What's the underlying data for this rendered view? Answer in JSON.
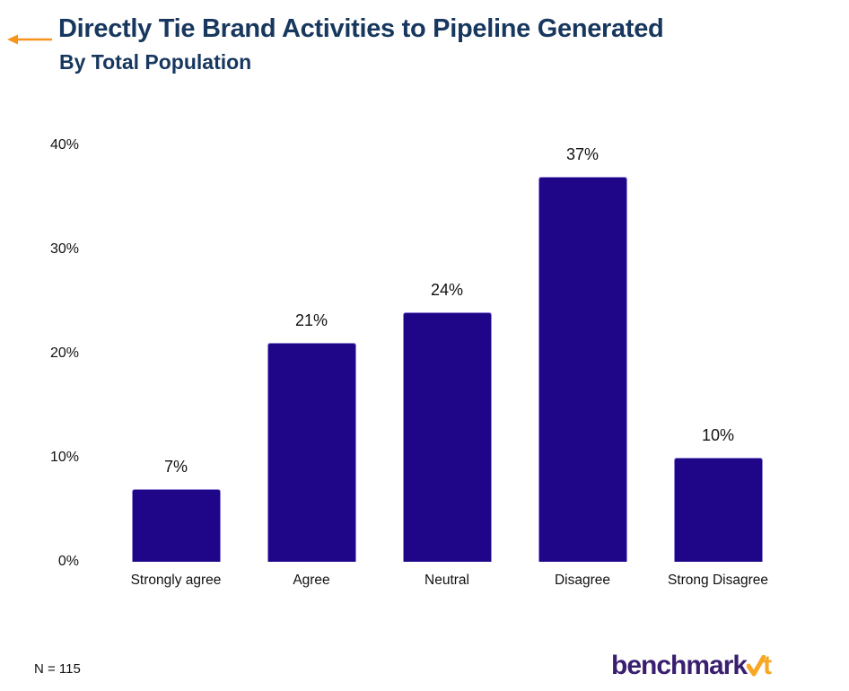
{
  "header": {
    "title": "Directly Tie Brand Activities to Pipeline Generated",
    "subtitle": "By Total Population",
    "title_color": "#17375E",
    "arrow_color": "#F7941D"
  },
  "chart_data": {
    "type": "bar",
    "title": "Directly Tie Brand Activities to Pipeline Generated",
    "subtitle": "By Total Population",
    "categories": [
      "Strongly agree",
      "Agree",
      "Neutral",
      "Disagree",
      "Strong Disagree"
    ],
    "values": [
      7,
      21,
      24,
      37,
      10
    ],
    "data_labels": [
      "7%",
      "21%",
      "24%",
      "37%",
      "10%"
    ],
    "xlabel": "",
    "ylabel": "",
    "ylim": [
      0,
      40
    ],
    "yticks": [
      0,
      10,
      20,
      30,
      40
    ],
    "ytick_labels": [
      "0%",
      "10%",
      "20%",
      "30%",
      "40%"
    ],
    "grid": false,
    "legend": false,
    "bar_color": "#1F0588"
  },
  "footer": {
    "sample_size": "N = 115",
    "logo": {
      "text_primary": "benchmark",
      "text_accent": "t",
      "check_icon": "checkmark-icon",
      "primary_color": "#3A1F70",
      "accent_color": "#F7A723"
    }
  }
}
